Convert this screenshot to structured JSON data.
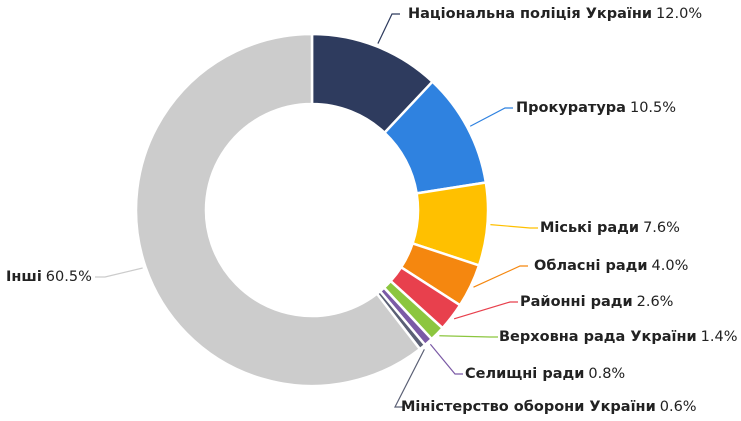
{
  "chart_data": {
    "type": "donut",
    "categories": [
      "Національна поліція України",
      "Прокуратура",
      "Міські ради",
      "Обласні ради",
      "Районні ради",
      "Верховна рада України",
      "Селищні ради",
      "Міністерство оборони України",
      "Інші"
    ],
    "values": [
      12.0,
      10.5,
      7.6,
      4.0,
      2.6,
      1.4,
      0.8,
      0.6,
      60.5
    ],
    "value_labels": [
      "12.0%",
      "10.5%",
      "7.6%",
      "4.0%",
      "2.6%",
      "1.4%",
      "0.8%",
      "0.6%",
      "60.5%"
    ],
    "colors": [
      "#2e3b5e",
      "#2f82e0",
      "#ffc000",
      "#f5870f",
      "#e8404d",
      "#8cc63f",
      "#7b5aa6",
      "#5b6075",
      "#cccccc"
    ]
  }
}
